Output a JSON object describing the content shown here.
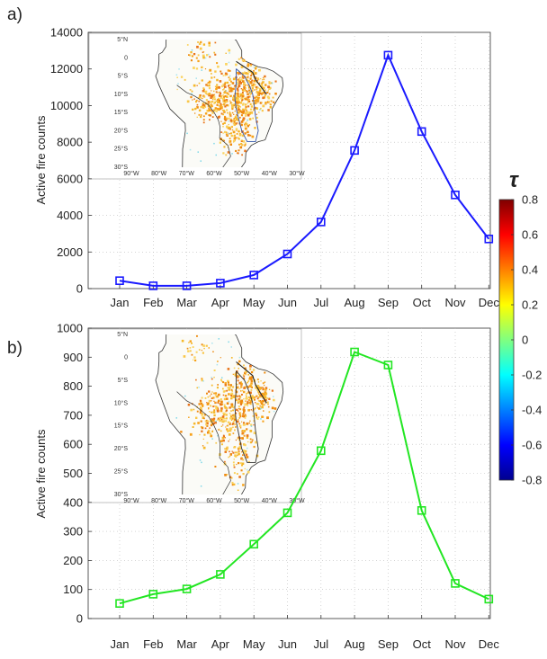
{
  "chart_data": [
    {
      "type": "line",
      "panel_label": "a)",
      "categories": [
        "Jan",
        "Feb",
        "Mar",
        "Apr",
        "May",
        "Jun",
        "Jul",
        "Aug",
        "Sep",
        "Oct",
        "Nov",
        "Dec"
      ],
      "series": [
        {
          "values": [
            430,
            150,
            150,
            300,
            740,
            1890,
            3640,
            7550,
            12750,
            8580,
            5120,
            2710
          ],
          "color": "#1a1aff",
          "marker": "square"
        }
      ],
      "ylabel": "Active fire counts",
      "ylim": [
        0,
        14000
      ],
      "yticks": [
        "0",
        "2000",
        "4000",
        "6000",
        "8000",
        "10000",
        "12000",
        "14000"
      ],
      "grid": "dotted",
      "inset_map": {
        "lat_ticks": [
          "5°N",
          "0",
          "5°S",
          "10°S",
          "15°S",
          "20°S",
          "25°S",
          "30°S"
        ],
        "lon_ticks": [
          "90°W",
          "80°W",
          "70°W",
          "60°W",
          "50°W",
          "40°W",
          "30°W"
        ]
      }
    },
    {
      "type": "line",
      "panel_label": "b)",
      "categories": [
        "Jan",
        "Feb",
        "Mar",
        "Apr",
        "May",
        "Jun",
        "Jul",
        "Aug",
        "Sep",
        "Oct",
        "Nov",
        "Dec"
      ],
      "series": [
        {
          "values": [
            52,
            84,
            102,
            152,
            256,
            364,
            578,
            918,
            873,
            372,
            121,
            67
          ],
          "color": "#22e622",
          "marker": "square"
        }
      ],
      "ylabel": "Active fire counts",
      "ylim": [
        0,
        1000
      ],
      "yticks": [
        "0",
        "100",
        "200",
        "300",
        "400",
        "500",
        "600",
        "700",
        "800",
        "900",
        "1000"
      ],
      "grid": "dotted",
      "inset_map": {
        "lat_ticks": [
          "5°N",
          "0",
          "5°S",
          "10°S",
          "15°S",
          "20°S",
          "25°S",
          "30°S"
        ],
        "lon_ticks": [
          "90°W",
          "80°W",
          "70°W",
          "60°W",
          "50°W",
          "40°W",
          "30°W"
        ]
      }
    }
  ],
  "colorbar": {
    "symbol": "τ",
    "ticks": [
      "0.8",
      "0.6",
      "0.4",
      "0.2",
      "0",
      "-0.2",
      "-0.4",
      "-0.6",
      "-0.8"
    ],
    "range": [
      -0.8,
      0.8
    ],
    "colors": [
      "#00008f",
      "#0000ff",
      "#0080ff",
      "#00ffff",
      "#80ff80",
      "#ffff00",
      "#ff8000",
      "#ff0000",
      "#800000"
    ]
  }
}
